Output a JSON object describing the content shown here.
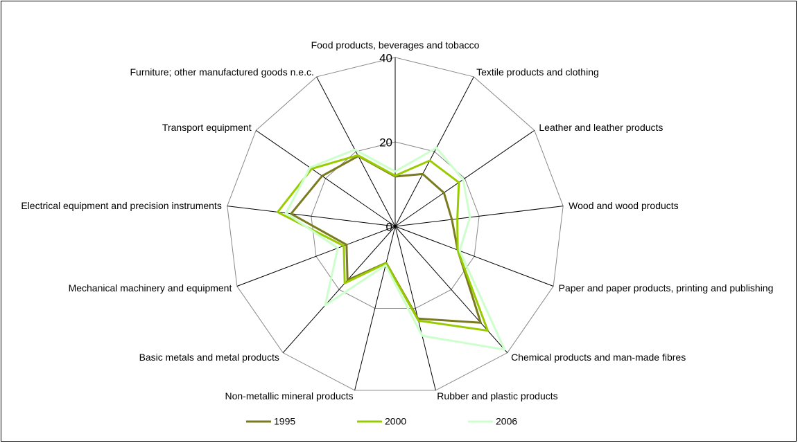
{
  "chart_data": {
    "type": "radar",
    "categories": [
      "Food products, beverages and tobacco",
      "Textile products and clothing",
      "Leather and leather products",
      "Wood and wood products",
      "Paper and paper products, printing and publishing",
      "Chemical products and man-made fibres",
      "Rubber and plastic products",
      "Non-metallic mineral products",
      "Basic metals and metal products",
      "Mechanical machinery and equipment",
      "Electrical equipment and precision instruments",
      "Transport equipment",
      "Furniture; other manufactured goods n.e.c."
    ],
    "series": [
      {
        "name": "1995",
        "color": "#7a7a1e",
        "values": [
          11.8,
          14,
          14,
          13.5,
          15.8,
          30.5,
          22.5,
          8.9,
          17,
          12.3,
          24.8,
          21,
          18.8
        ]
      },
      {
        "name": "2000",
        "color": "#99cc00",
        "values": [
          12,
          17.6,
          18.3,
          14.8,
          15.8,
          33,
          23,
          9,
          18,
          13,
          28,
          24,
          19
        ]
      },
      {
        "name": "2006",
        "color": "#ccffcc",
        "values": [
          13,
          21,
          19.5,
          17.8,
          16.3,
          39,
          26.7,
          9.5,
          25,
          14.5,
          26,
          24.5,
          20.5
        ]
      }
    ],
    "ylim": [
      0,
      40
    ],
    "yticks": [
      0,
      20,
      40
    ],
    "grid": true
  }
}
